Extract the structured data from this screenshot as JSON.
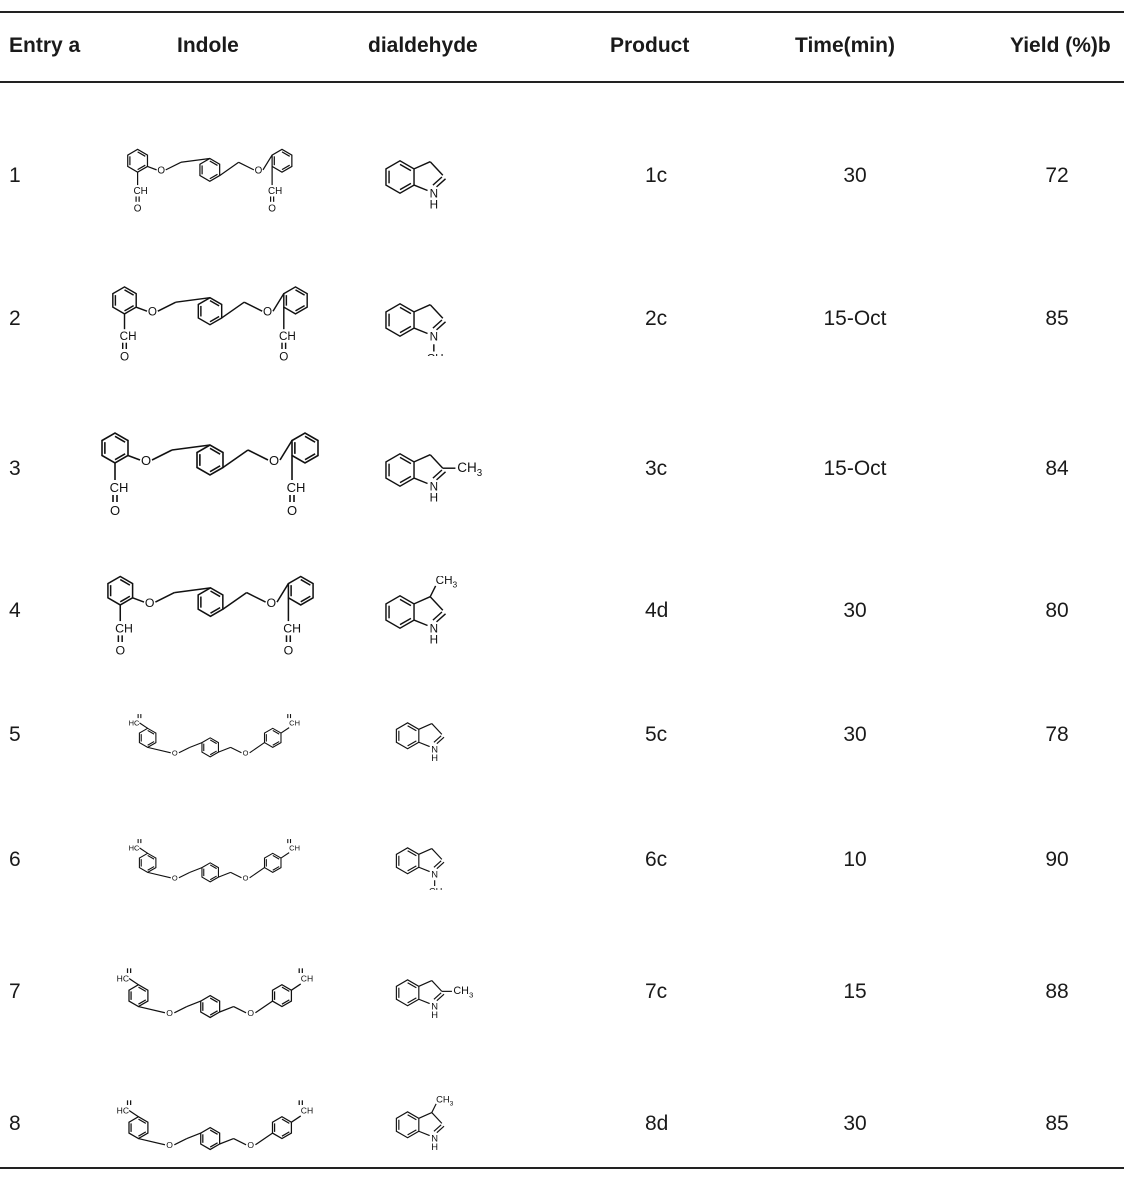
{
  "table": {
    "headers": {
      "entry": "Entry a",
      "indole": "Indole",
      "dialdehyde": "dialdehyde",
      "product": "Product",
      "time": "Time(min)",
      "yield": "Yield (%)b"
    },
    "rows": [
      {
        "entry": "1",
        "product": "1c",
        "time": "30",
        "yield": "72",
        "dialdehyde": "ortho",
        "indole": "indoline"
      },
      {
        "entry": "2",
        "product": "2c",
        "time": "15-Oct",
        "yield": "85",
        "dialdehyde": "ortho",
        "indole": "N-methyl"
      },
      {
        "entry": "3",
        "product": "3c",
        "time": "15-Oct",
        "yield": "84",
        "dialdehyde": "ortho",
        "indole": "2-methyl"
      },
      {
        "entry": "4",
        "product": "4d",
        "time": "30",
        "yield": "80",
        "dialdehyde": "ortho",
        "indole": "3-methyl"
      },
      {
        "entry": "5",
        "product": "5c",
        "time": "30",
        "yield": "78",
        "dialdehyde": "para",
        "indole": "indoline"
      },
      {
        "entry": "6",
        "product": "6c",
        "time": "10",
        "yield": "90",
        "dialdehyde": "para",
        "indole": "N-methyl"
      },
      {
        "entry": "7",
        "product": "7c",
        "time": "15",
        "yield": "88",
        "dialdehyde": "para",
        "indole": "2-methyl"
      },
      {
        "entry": "8",
        "product": "8d",
        "time": "30",
        "yield": "85",
        "dialdehyde": "para",
        "indole": "3-methyl"
      }
    ]
  },
  "labels": {
    "o": "O",
    "ch": "CH",
    "hc": "HC",
    "n": "N",
    "h": "H",
    "ch3": "CH3"
  }
}
